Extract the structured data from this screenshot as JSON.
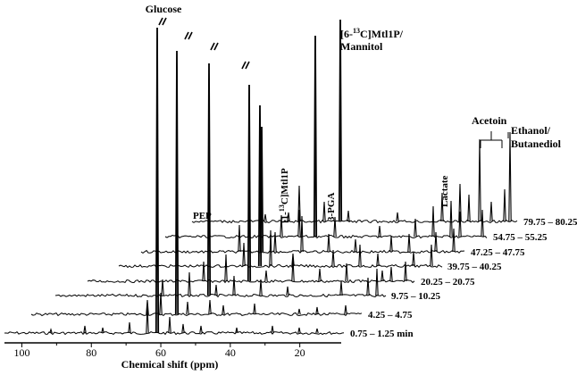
{
  "chart_data": {
    "type": "line",
    "subtype": "stacked-waterfall-nmr",
    "xlabel": "Chemical shift (ppm)",
    "x_ticks": [
      100,
      80,
      60,
      40,
      20
    ],
    "xlim": [
      105,
      10
    ],
    "axis_reversed": true,
    "grid": false,
    "series": [
      {
        "name": "0.75 – 1.25 min"
      },
      {
        "name": "4.25 – 4.75"
      },
      {
        "name": "9.75 – 10.25"
      },
      {
        "name": "20.25 – 20.75"
      },
      {
        "name": "39.75 – 40.25"
      },
      {
        "name": "47.25 – 47.75"
      },
      {
        "name": "54.75 – 55.25"
      },
      {
        "name": "79.75 – 80.25"
      }
    ],
    "peak_labels": {
      "glucose": "Glucose",
      "mtl1p_6_pre": "[6-",
      "mtl1p_6_sup": "13",
      "mtl1p_6_post": "C]Mtl1P/",
      "mannitol": "Mannitol",
      "pep": "PEP",
      "mtl1p_1_pre": "[1-",
      "mtl1p_1_sup": "13",
      "mtl1p_1_post": "C]Mtl1P",
      "pga": "3-PGA",
      "lactate": "Lactate",
      "acetoin": "Acetoin",
      "ethanol": "Ethanol/",
      "butanediol": "Butanediol"
    }
  }
}
